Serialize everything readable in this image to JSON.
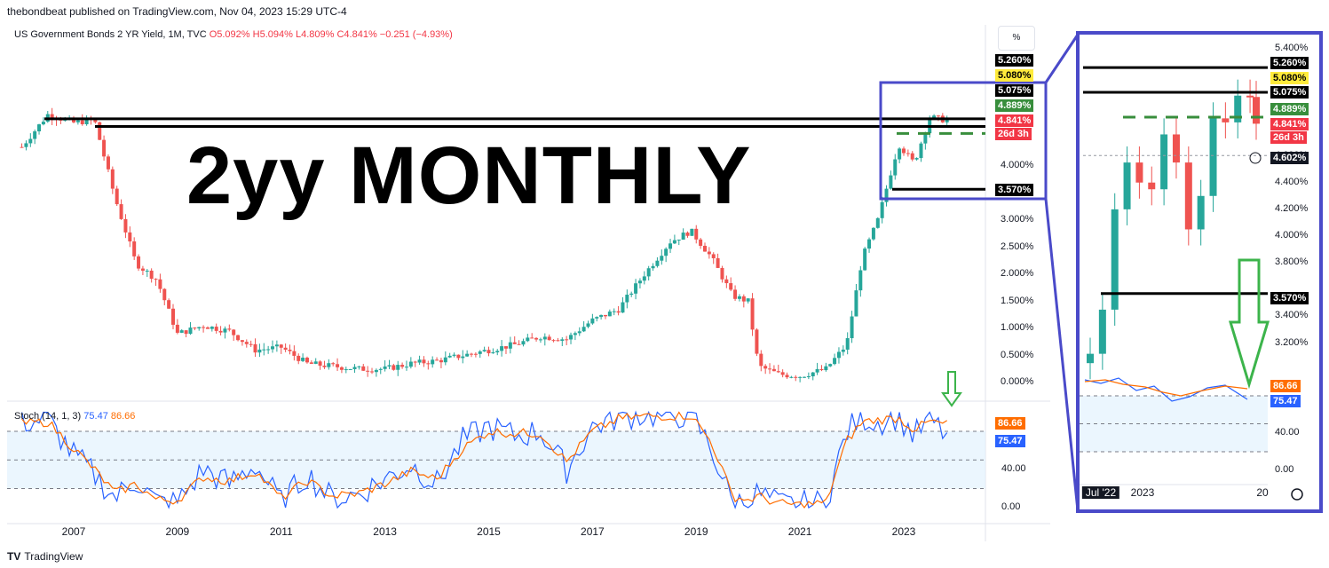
{
  "header": {
    "publisher": "thebondbeat published on TradingView.com, Nov 04, 2023 15:29 UTC-4",
    "symbol": "US Government Bonds 2 YR Yield, 1M, TVC",
    "ohlc": {
      "O": "O5.092%",
      "H": "H5.094%",
      "L": "L4.809%",
      "C": "C4.841%",
      "chg": "−0.251 (−4.93%)"
    },
    "scale_button": "%"
  },
  "overlay_title": "2yy MONTHLY",
  "stoch": {
    "label": "Stoch (14, 1, 3)",
    "k": "75.47",
    "d": "86.66"
  },
  "footer": {
    "brand": "TradingView"
  },
  "colors": {
    "up": "#26a69a",
    "down": "#ef5350",
    "stoch_k": "#2962ff",
    "stoch_d": "#ff6d00",
    "box": "#4a4ac9",
    "arrow": "#3cb44b"
  },
  "price_tags": [
    {
      "text": "5.260%",
      "bg": "#000000",
      "fg": "#ffffff"
    },
    {
      "text": "5.080%",
      "bg": "#ffeb3b",
      "fg": "#000000"
    },
    {
      "text": "5.075%",
      "bg": "#000000",
      "fg": "#ffffff"
    },
    {
      "text": "4.889%",
      "bg": "#388e3c",
      "fg": "#ffffff"
    },
    {
      "text": "4.841%",
      "bg": "#f23645",
      "fg": "#ffffff"
    },
    {
      "text": "26d 3h",
      "bg": "#f23645",
      "fg": "#ffffff"
    },
    {
      "text": "3.570%",
      "bg": "#000000",
      "fg": "#ffffff"
    }
  ],
  "zoom_tags": [
    {
      "text": "5.260%",
      "bg": "#000000",
      "fg": "#ffffff"
    },
    {
      "text": "5.080%",
      "bg": "#ffeb3b",
      "fg": "#000000"
    },
    {
      "text": "5.075%",
      "bg": "#000000",
      "fg": "#ffffff"
    },
    {
      "text": "4.889%",
      "bg": "#388e3c",
      "fg": "#ffffff"
    },
    {
      "text": "4.841%",
      "bg": "#f23645",
      "fg": "#ffffff"
    },
    {
      "text": "26d 3h",
      "bg": "#f23645",
      "fg": "#ffffff"
    },
    {
      "text": "4.602%",
      "bg": "#131722",
      "fg": "#ffffff"
    },
    {
      "text": "3.570%",
      "bg": "#000000",
      "fg": "#ffffff"
    },
    {
      "text": "86.66",
      "bg": "#ff6d00",
      "fg": "#ffffff"
    },
    {
      "text": "75.47",
      "bg": "#2962ff",
      "fg": "#ffffff"
    }
  ],
  "chart_data": [
    {
      "type": "line",
      "title": "US Government Bonds 2 YR Yield, 1M, TVC",
      "ylabel": "%",
      "yticks": [
        "4.000%",
        "3.500%",
        "3.000%",
        "2.500%",
        "2.000%",
        "1.500%",
        "1.000%",
        "0.500%",
        "0.000%"
      ],
      "ylim": [
        0,
        5.4
      ],
      "xticks": [
        "2007",
        "2009",
        "2011",
        "2013",
        "2015",
        "2017",
        "2019",
        "2021",
        "2023"
      ],
      "series": [
        {
          "x": [
            2006.0,
            2006.5,
            2007.0,
            2007.4,
            2007.8,
            2008.2,
            2008.6,
            2009.0,
            2009.5,
            2010.0,
            2010.5,
            2011.0,
            2011.5,
            2012.0,
            2012.5,
            2013.0,
            2013.5,
            2014.0,
            2014.5,
            2015.0,
            2015.5,
            2016.0,
            2016.5,
            2017.0,
            2017.5,
            2018.0,
            2018.5,
            2018.9,
            2019.3,
            2019.7,
            2020.0,
            2020.2,
            2020.6,
            2021.0,
            2021.5,
            2021.9,
            2022.2,
            2022.5,
            2022.9,
            2023.2,
            2023.5,
            2023.85
          ],
          "y": [
            4.35,
            4.95,
            4.8,
            4.85,
            3.4,
            2.2,
            1.9,
            0.9,
            1.05,
            0.95,
            0.6,
            0.65,
            0.35,
            0.3,
            0.25,
            0.25,
            0.35,
            0.4,
            0.5,
            0.6,
            0.7,
            0.85,
            0.8,
            1.15,
            1.35,
            2.0,
            2.6,
            2.8,
            2.3,
            1.6,
            1.5,
            0.3,
            0.15,
            0.12,
            0.25,
            0.7,
            2.3,
            3.0,
            4.4,
            4.05,
            4.9,
            4.84
          ]
        }
      ],
      "levels": [
        5.26,
        5.08,
        5.075,
        4.889,
        3.57
      ]
    },
    {
      "type": "line",
      "title": "Stoch (14, 1, 3)",
      "yticks": [
        "40.00",
        "0.00"
      ],
      "ylim": [
        0,
        100
      ],
      "bands": [
        20,
        50,
        80
      ],
      "series": [
        {
          "name": "75.47",
          "x": [
            2006.0,
            2006.5,
            2007.0,
            2007.4,
            2007.8,
            2008.2,
            2008.6,
            2009.0,
            2009.5,
            2010.0,
            2010.5,
            2011.0,
            2011.5,
            2012.0,
            2012.5,
            2013.0,
            2013.5,
            2014.0,
            2014.5,
            2015.0,
            2015.5,
            2016.0,
            2016.5,
            2017.0,
            2017.5,
            2018.0,
            2018.5,
            2018.9,
            2019.3,
            2019.7,
            2020.0,
            2020.2,
            2020.6,
            2021.0,
            2021.5,
            2021.9,
            2022.2,
            2022.5,
            2022.9,
            2023.2,
            2023.5,
            2023.85
          ],
          "y": [
            90,
            92,
            55,
            35,
            10,
            30,
            5,
            5,
            40,
            25,
            45,
            5,
            35,
            8,
            15,
            30,
            45,
            25,
            70,
            85,
            75,
            80,
            40,
            85,
            95,
            98,
            95,
            99,
            60,
            5,
            8,
            15,
            3,
            3,
            5,
            80,
            95,
            90,
            96,
            75,
            92,
            75
          ]
        },
        {
          "name": "86.66",
          "x": [
            2006.0,
            2006.5,
            2007.0,
            2007.4,
            2007.8,
            2008.2,
            2008.6,
            2009.0,
            2009.5,
            2010.0,
            2010.5,
            2011.0,
            2011.5,
            2012.0,
            2012.5,
            2013.0,
            2013.5,
            2014.0,
            2014.5,
            2015.0,
            2015.5,
            2016.0,
            2016.5,
            2017.0,
            2017.5,
            2018.0,
            2018.5,
            2018.9,
            2019.3,
            2019.7,
            2020.0,
            2020.2,
            2020.6,
            2021.0,
            2021.5,
            2021.9,
            2022.2,
            2022.5,
            2022.9,
            2023.2,
            2023.5,
            2023.85
          ],
          "y": [
            88,
            90,
            62,
            40,
            15,
            25,
            8,
            8,
            32,
            28,
            38,
            10,
            28,
            12,
            15,
            25,
            38,
            30,
            62,
            80,
            78,
            78,
            48,
            80,
            93,
            96,
            96,
            97,
            68,
            12,
            8,
            12,
            4,
            3,
            5,
            70,
            90,
            92,
            94,
            82,
            90,
            87
          ]
        }
      ]
    },
    {
      "type": "line",
      "title": "zoom",
      "yticks": [
        "5.400%",
        "4.600%",
        "4.400%",
        "4.200%",
        "4.000%",
        "3.800%",
        "3.400%",
        "3.200%"
      ],
      "ylim": [
        3.0,
        5.45
      ],
      "xticks": [
        "Jul '22",
        "2023",
        "20"
      ],
      "stoch_yticks": [
        "40.00",
        "0.00"
      ],
      "series": [
        {
          "x": [
            2022.5,
            2022.6,
            2022.7,
            2022.8,
            2022.9,
            2023.0,
            2023.1,
            2023.2,
            2023.3,
            2023.4,
            2023.5,
            2023.6,
            2023.7,
            2023.8,
            2023.85
          ],
          "y": [
            3.12,
            3.45,
            4.2,
            4.55,
            4.4,
            4.35,
            4.76,
            4.55,
            4.05,
            4.3,
            4.88,
            4.85,
            5.05,
            5.04,
            4.84
          ]
        }
      ]
    }
  ]
}
